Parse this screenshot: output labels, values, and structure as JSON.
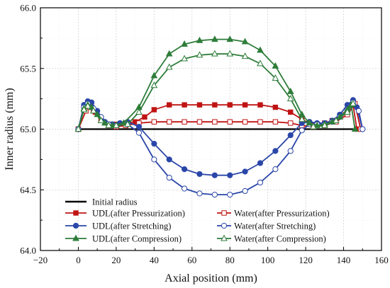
{
  "chart_data": {
    "type": "line",
    "xlabel": "Axial position (mm)",
    "ylabel": "Inner radius (mm)",
    "xlim": [
      -20,
      160
    ],
    "ylim": [
      64.0,
      66.0
    ],
    "xticks": [
      -20,
      0,
      20,
      40,
      60,
      80,
      100,
      120,
      140,
      160
    ],
    "yticks": [
      64.0,
      64.5,
      65.0,
      65.5,
      66.0
    ],
    "ytick_labels": [
      "64.0",
      "64.5",
      "65.0",
      "65.5",
      "66.0"
    ],
    "grid": true,
    "legend_position": "bottom",
    "series": [
      {
        "name": "Initial radius",
        "color": "#000000",
        "marker": "none",
        "x": [
          0,
          145
        ],
        "y": [
          65.0,
          65.0
        ]
      },
      {
        "name": "UDL(after Pressurization)",
        "color": "#c01414",
        "marker": "square-filled",
        "x": [
          0,
          3,
          5,
          7,
          9,
          12,
          16,
          20,
          25,
          30,
          35,
          40,
          48,
          56,
          64,
          72,
          80,
          88,
          96,
          104,
          112,
          118,
          122,
          126,
          130,
          134,
          138,
          142,
          145,
          147
        ],
        "y": [
          65.0,
          65.17,
          65.2,
          65.18,
          65.14,
          65.08,
          65.04,
          65.04,
          65.05,
          65.06,
          65.1,
          65.16,
          65.2,
          65.2,
          65.2,
          65.2,
          65.2,
          65.2,
          65.2,
          65.18,
          65.14,
          65.08,
          65.05,
          65.04,
          65.05,
          65.07,
          65.11,
          65.16,
          65.2,
          65.0
        ]
      },
      {
        "name": "Water(after Pressurization)",
        "color": "#c01414",
        "marker": "square-open",
        "x": [
          0,
          4,
          6,
          8,
          12,
          16,
          20,
          25,
          32,
          40,
          48,
          56,
          64,
          72,
          80,
          88,
          96,
          104,
          112,
          118,
          124,
          130,
          136,
          142,
          146,
          149
        ],
        "y": [
          65.0,
          65.15,
          65.18,
          65.15,
          65.08,
          65.03,
          65.02,
          65.03,
          65.05,
          65.06,
          65.06,
          65.06,
          65.06,
          65.06,
          65.06,
          65.06,
          65.06,
          65.06,
          65.05,
          65.03,
          65.02,
          65.03,
          65.06,
          65.12,
          65.21,
          65.0
        ]
      },
      {
        "name": "UDL(after Stretching)",
        "color": "#2a46a8",
        "marker": "circle-filled",
        "x": [
          0,
          3,
          5,
          7,
          10,
          14,
          18,
          22,
          26,
          32,
          40,
          48,
          56,
          64,
          72,
          80,
          88,
          96,
          104,
          112,
          118,
          122,
          126,
          130,
          134,
          138,
          142,
          145,
          147,
          150
        ],
        "y": [
          65.0,
          65.2,
          65.23,
          65.22,
          65.15,
          65.06,
          65.04,
          65.05,
          65.06,
          65.02,
          64.88,
          64.75,
          64.67,
          64.63,
          64.62,
          64.62,
          64.65,
          64.72,
          64.82,
          64.95,
          65.05,
          65.06,
          65.05,
          65.05,
          65.07,
          65.12,
          65.2,
          65.24,
          65.18,
          65.0
        ]
      },
      {
        "name": "Water(after Stretching)",
        "color": "#2a46a8",
        "marker": "circle-open",
        "x": [
          0,
          3,
          5,
          8,
          12,
          16,
          20,
          26,
          32,
          40,
          48,
          56,
          64,
          72,
          80,
          88,
          96,
          104,
          112,
          118,
          122,
          126,
          130,
          134,
          138,
          142,
          145,
          148,
          150
        ],
        "y": [
          65.0,
          65.18,
          65.21,
          65.17,
          65.1,
          65.04,
          65.03,
          65.04,
          64.97,
          64.75,
          64.6,
          64.51,
          64.47,
          64.46,
          64.46,
          64.49,
          64.56,
          64.67,
          64.82,
          64.99,
          65.04,
          65.04,
          65.04,
          65.06,
          65.1,
          65.16,
          65.22,
          65.15,
          65.0
        ]
      },
      {
        "name": "UDL(after Compression)",
        "color": "#2e7d3a",
        "marker": "triangle-filled",
        "x": [
          0,
          3,
          5,
          7,
          10,
          14,
          18,
          24,
          32,
          40,
          48,
          56,
          64,
          72,
          80,
          88,
          96,
          104,
          112,
          118,
          122,
          126,
          130,
          134,
          138,
          142,
          144,
          146
        ],
        "y": [
          65.0,
          65.17,
          65.2,
          65.18,
          65.12,
          65.05,
          65.03,
          65.05,
          65.18,
          65.44,
          65.62,
          65.7,
          65.73,
          65.74,
          65.74,
          65.72,
          65.65,
          65.52,
          65.31,
          65.12,
          65.05,
          65.03,
          65.04,
          65.06,
          65.1,
          65.16,
          65.2,
          65.0
        ]
      },
      {
        "name": "Water(after Compression)",
        "color": "#2e7d3a",
        "marker": "triangle-open",
        "x": [
          0,
          3,
          5,
          8,
          12,
          16,
          20,
          26,
          32,
          40,
          48,
          56,
          64,
          72,
          80,
          88,
          96,
          104,
          112,
          118,
          124,
          130,
          136,
          142,
          145
        ],
        "y": [
          65.0,
          65.16,
          65.19,
          65.15,
          65.07,
          65.03,
          65.03,
          65.04,
          65.14,
          65.36,
          65.51,
          65.58,
          65.61,
          65.62,
          65.62,
          65.6,
          65.54,
          65.42,
          65.25,
          65.08,
          65.02,
          65.03,
          65.07,
          65.14,
          65.21
        ]
      }
    ]
  }
}
